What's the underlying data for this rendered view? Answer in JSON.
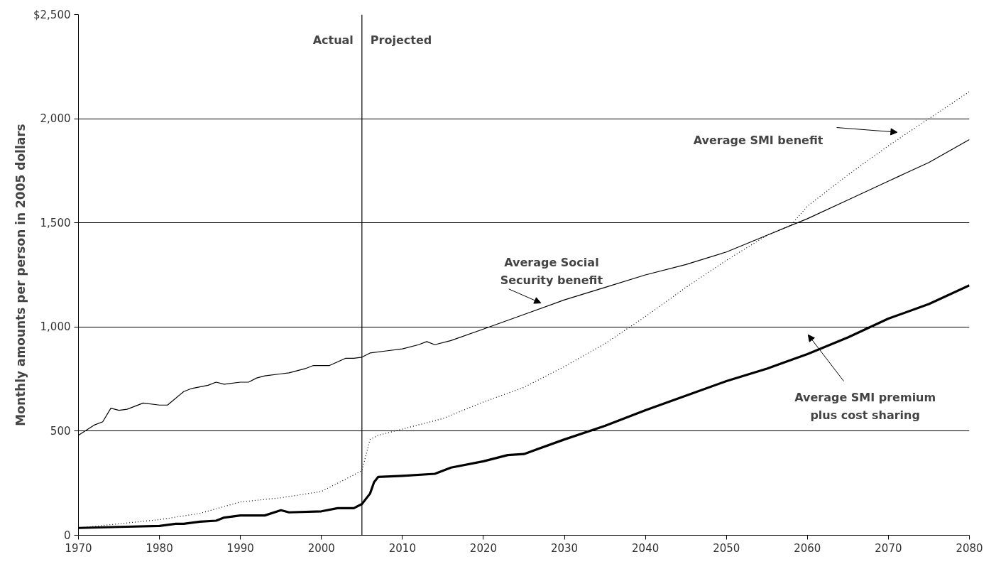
{
  "chart_data": {
    "type": "line",
    "ylabel": "Monthly amounts per person in 2005 dollars",
    "xlim": [
      1970,
      2080
    ],
    "xticks": [
      1970,
      1980,
      1990,
      2000,
      2010,
      2020,
      2030,
      2040,
      2050,
      2060,
      2070,
      2080
    ],
    "ylim": [
      0,
      2500
    ],
    "yticks": [
      0,
      500,
      {
        "value": 1000,
        "label": "1,000"
      },
      {
        "value": 1500,
        "label": "1,500"
      },
      {
        "value": 2000,
        "label": "2,000"
      },
      {
        "value": 2500,
        "label": "$2,500"
      }
    ],
    "grid": "y",
    "marker": "none",
    "series": [
      {
        "color": "#000000",
        "line_style": "solid",
        "x": [
          1970,
          1972,
          1973,
          1974,
          1975,
          1976,
          1978,
          1980,
          1981,
          1983,
          1984,
          1986,
          1987,
          1988,
          1990,
          1991,
          1992,
          1993,
          1995,
          1996,
          1998,
          1999,
          2001,
          2003,
          2004,
          2005,
          2006,
          2008,
          2010,
          2012,
          2013,
          2014,
          2016,
          2020,
          2025,
          2030,
          2035,
          2040,
          2045,
          2050,
          2055,
          2060,
          2065,
          2070,
          2075,
          2080
        ],
        "values": [
          480,
          530,
          545,
          610,
          600,
          605,
          635,
          625,
          625,
          690,
          705,
          720,
          735,
          725,
          735,
          735,
          755,
          765,
          775,
          780,
          800,
          815,
          815,
          850,
          850,
          855,
          875,
          885,
          895,
          915,
          930,
          915,
          935,
          990,
          1060,
          1130,
          1190,
          1250,
          1300,
          1360,
          1440,
          1520,
          1610,
          1700,
          1790,
          1900
        ]
      },
      {
        "color": "#000000",
        "line_style": "dotted",
        "x": [
          1970,
          1975,
          1980,
          1985,
          1990,
          1995,
          2000,
          2003,
          2005,
          2006,
          2007,
          2010,
          2015,
          2020,
          2025,
          2030,
          2035,
          2040,
          2045,
          2050,
          2055,
          2058,
          2060,
          2065,
          2070,
          2075,
          2080
        ],
        "values": [
          35,
          55,
          75,
          105,
          160,
          180,
          210,
          270,
          310,
          460,
          480,
          510,
          560,
          640,
          710,
          810,
          920,
          1050,
          1190,
          1320,
          1440,
          1490,
          1580,
          1730,
          1870,
          2000,
          2130
        ]
      },
      {
        "color": "#000000",
        "line_style": "solid",
        "x": [
          1970,
          1975,
          1980,
          1982,
          1983,
          1985,
          1987,
          1988,
          1990,
          1993,
          1995,
          1996,
          2000,
          2002,
          2004,
          2005,
          2006,
          2006.5,
          2007,
          2010,
          2014,
          2016,
          2020,
          2023,
          2025,
          2030,
          2035,
          2040,
          2045,
          2050,
          2055,
          2060,
          2065,
          2070,
          2075,
          2080
        ],
        "values": [
          35,
          40,
          45,
          55,
          55,
          65,
          70,
          85,
          95,
          95,
          120,
          110,
          115,
          130,
          130,
          150,
          200,
          255,
          280,
          285,
          295,
          325,
          355,
          385,
          390,
          460,
          525,
          600,
          670,
          740,
          800,
          870,
          950,
          1040,
          1110,
          1200
        ]
      }
    ],
    "ref_lines": [
      {
        "axis": "x",
        "value": 2005,
        "color": "#000000"
      }
    ],
    "annotations": [
      "Actual",
      "Projected",
      "Average SMI benefit",
      "Average Social\nSecurity benefit",
      "Average SMI premium\nplus cost sharing"
    ]
  }
}
